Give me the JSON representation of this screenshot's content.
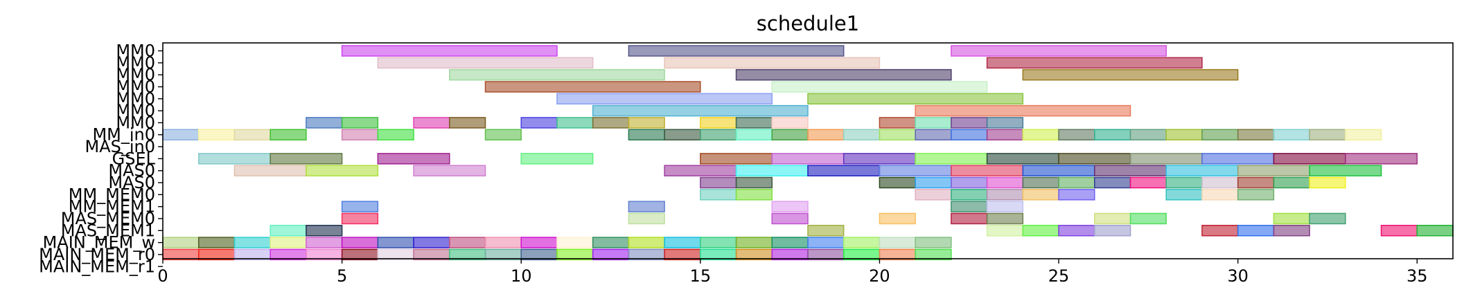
{
  "chart_data": {
    "type": "gantt",
    "title": "schedule1",
    "xlabel": "",
    "ylabel": "",
    "xlim": [
      0,
      36
    ],
    "xticks": [
      0,
      5,
      10,
      15,
      20,
      25,
      30,
      35
    ],
    "grid": false,
    "legend": "none",
    "rows": [
      "MM0",
      "MM0",
      "MM0",
      "MM0",
      "MM0",
      "MM0",
      "MM0",
      "MM_in0",
      "MAS_in0",
      "GSEL",
      "MAS0",
      "MAS0",
      "MM_MEM0",
      "MM_MEM1",
      "MAS_MEM0",
      "MAS_MEM1",
      "MAIN_MEM_w",
      "MAIN_MEM_r0",
      "MAIN_MEM_r1"
    ],
    "tasks": [
      {
        "row": 0,
        "start": 5,
        "end": 11,
        "color": "#cc44ee"
      },
      {
        "row": 0,
        "start": 13,
        "end": 19,
        "color": "#55558a"
      },
      {
        "row": 0,
        "start": 22,
        "end": 28,
        "color": "#d655e0"
      },
      {
        "row": 1,
        "start": 6,
        "end": 12,
        "color": "#e0bcc8"
      },
      {
        "row": 1,
        "start": 14,
        "end": 20,
        "color": "#e8c4b8"
      },
      {
        "row": 1,
        "start": 23,
        "end": 29,
        "color": "#b02a48"
      },
      {
        "row": 2,
        "start": 8,
        "end": 14,
        "color": "#a0d8a0"
      },
      {
        "row": 2,
        "start": 16,
        "end": 22,
        "color": "#4e3f6a"
      },
      {
        "row": 2,
        "start": 24,
        "end": 30,
        "color": "#9a7a20"
      },
      {
        "row": 3,
        "start": 9,
        "end": 15,
        "color": "#a8502a"
      },
      {
        "row": 3,
        "start": 17,
        "end": 23,
        "color": "#c8f0c8"
      },
      {
        "row": 4,
        "start": 11,
        "end": 17,
        "color": "#8aa0f0"
      },
      {
        "row": 4,
        "start": 18,
        "end": 24,
        "color": "#8ac440"
      },
      {
        "row": 5,
        "start": 12,
        "end": 18,
        "color": "#50b0d0"
      },
      {
        "row": 5,
        "start": 21,
        "end": 27,
        "color": "#e87a5a"
      },
      {
        "row": 6,
        "start": 4,
        "end": 5,
        "color": "#4a7ac0"
      },
      {
        "row": 6,
        "start": 5,
        "end": 6,
        "color": "#40c040"
      },
      {
        "row": 6,
        "start": 7,
        "end": 8,
        "color": "#e040b0"
      },
      {
        "row": 6,
        "start": 8,
        "end": 9,
        "color": "#7a5a20"
      },
      {
        "row": 6,
        "start": 10,
        "end": 11,
        "color": "#4a40e0"
      },
      {
        "row": 6,
        "start": 11,
        "end": 12,
        "color": "#40c090"
      },
      {
        "row": 6,
        "start": 12,
        "end": 13,
        "color": "#7a7030"
      },
      {
        "row": 6,
        "start": 13,
        "end": 14,
        "color": "#c0b030"
      },
      {
        "row": 6,
        "start": 15,
        "end": 16,
        "color": "#f0d020"
      },
      {
        "row": 6,
        "start": 16,
        "end": 17,
        "color": "#3a6a50"
      },
      {
        "row": 6,
        "start": 17,
        "end": 18,
        "color": "#f8c8c0"
      },
      {
        "row": 6,
        "start": 20,
        "end": 21,
        "color": "#b04a30"
      },
      {
        "row": 6,
        "start": 21,
        "end": 22,
        "color": "#70e0b0"
      },
      {
        "row": 6,
        "start": 22,
        "end": 23,
        "color": "#704090"
      },
      {
        "row": 6,
        "start": 23,
        "end": 24,
        "color": "#4a7a9a"
      },
      {
        "row": 7,
        "start": 0,
        "end": 1,
        "color": "#8ab0e0"
      },
      {
        "row": 7,
        "start": 1,
        "end": 2,
        "color": "#f8f0a0"
      },
      {
        "row": 7,
        "start": 2,
        "end": 3,
        "color": "#e0d8a0"
      },
      {
        "row": 7,
        "start": 3,
        "end": 4,
        "color": "#40c030"
      },
      {
        "row": 7,
        "start": 5,
        "end": 6,
        "color": "#d080b0"
      },
      {
        "row": 7,
        "start": 6,
        "end": 7,
        "color": "#40e040"
      },
      {
        "row": 7,
        "start": 9,
        "end": 10,
        "color": "#60c050"
      },
      {
        "row": 7,
        "start": 13,
        "end": 14,
        "color": "#2a7a50"
      },
      {
        "row": 7,
        "start": 14,
        "end": 15,
        "color": "#3a5a40"
      },
      {
        "row": 7,
        "start": 15,
        "end": 16,
        "color": "#40a070"
      },
      {
        "row": 7,
        "start": 16,
        "end": 17,
        "color": "#60f0c0"
      },
      {
        "row": 7,
        "start": 17,
        "end": 18,
        "color": "#40a040"
      },
      {
        "row": 7,
        "start": 18,
        "end": 19,
        "color": "#f09a50"
      },
      {
        "row": 7,
        "start": 19,
        "end": 20,
        "color": "#90d0c0"
      },
      {
        "row": 7,
        "start": 20,
        "end": 21,
        "color": "#a0e060"
      },
      {
        "row": 7,
        "start": 21,
        "end": 22,
        "color": "#606ab0"
      },
      {
        "row": 7,
        "start": 22,
        "end": 23,
        "color": "#4070e0"
      },
      {
        "row": 7,
        "start": 23,
        "end": 24,
        "color": "#a04090"
      },
      {
        "row": 7,
        "start": 24,
        "end": 25,
        "color": "#d0f050"
      },
      {
        "row": 7,
        "start": 25,
        "end": 26,
        "color": "#607a60"
      },
      {
        "row": 7,
        "start": 26,
        "end": 27,
        "color": "#30b090"
      },
      {
        "row": 7,
        "start": 27,
        "end": 28,
        "color": "#60a080"
      },
      {
        "row": 7,
        "start": 28,
        "end": 29,
        "color": "#a0c030"
      },
      {
        "row": 7,
        "start": 29,
        "end": 30,
        "color": "#60a050"
      },
      {
        "row": 7,
        "start": 30,
        "end": 31,
        "color": "#7a7a40"
      },
      {
        "row": 7,
        "start": 31,
        "end": 32,
        "color": "#80d0d0"
      },
      {
        "row": 7,
        "start": 32,
        "end": 33,
        "color": "#a0b080"
      },
      {
        "row": 7,
        "start": 33,
        "end": 34,
        "color": "#f0f0a0"
      },
      {
        "row": 9,
        "start": 1,
        "end": 3,
        "color": "#80c8c8"
      },
      {
        "row": 9,
        "start": 3,
        "end": 5,
        "color": "#607a40"
      },
      {
        "row": 9,
        "start": 6,
        "end": 8,
        "color": "#a02090"
      },
      {
        "row": 9,
        "start": 10,
        "end": 12,
        "color": "#60f080"
      },
      {
        "row": 9,
        "start": 15,
        "end": 17,
        "color": "#a04a20"
      },
      {
        "row": 9,
        "start": 17,
        "end": 19,
        "color": "#c060d0"
      },
      {
        "row": 9,
        "start": 19,
        "end": 21,
        "color": "#6030c0"
      },
      {
        "row": 9,
        "start": 21,
        "end": 23,
        "color": "#80f050"
      },
      {
        "row": 9,
        "start": 23,
        "end": 25,
        "color": "#2a4a3a"
      },
      {
        "row": 9,
        "start": 25,
        "end": 27,
        "color": "#4a4a20"
      },
      {
        "row": 9,
        "start": 27,
        "end": 29,
        "color": "#809070"
      },
      {
        "row": 9,
        "start": 29,
        "end": 31,
        "color": "#5070e0"
      },
      {
        "row": 9,
        "start": 31,
        "end": 33,
        "color": "#800a40"
      },
      {
        "row": 9,
        "start": 33,
        "end": 35,
        "color": "#a03080"
      },
      {
        "row": 10,
        "start": 2,
        "end": 4,
        "color": "#e0c0b0"
      },
      {
        "row": 10,
        "start": 4,
        "end": 6,
        "color": "#b0e040"
      },
      {
        "row": 10,
        "start": 7,
        "end": 9,
        "color": "#d080d0"
      },
      {
        "row": 10,
        "start": 14,
        "end": 16,
        "color": "#a040a0"
      },
      {
        "row": 10,
        "start": 16,
        "end": 18,
        "color": "#40f0f0"
      },
      {
        "row": 10,
        "start": 18,
        "end": 20,
        "color": "#2020c0"
      },
      {
        "row": 10,
        "start": 20,
        "end": 22,
        "color": "#6080e0"
      },
      {
        "row": 10,
        "start": 22,
        "end": 24,
        "color": "#e04060"
      },
      {
        "row": 10,
        "start": 24,
        "end": 26,
        "color": "#2050d0"
      },
      {
        "row": 10,
        "start": 26,
        "end": 28,
        "color": "#603070"
      },
      {
        "row": 10,
        "start": 28,
        "end": 30,
        "color": "#30c0e0"
      },
      {
        "row": 10,
        "start": 30,
        "end": 32,
        "color": "#90a070"
      },
      {
        "row": 10,
        "start": 32,
        "end": 34,
        "color": "#20c040"
      },
      {
        "row": 11,
        "start": 15,
        "end": 16,
        "color": "#804090"
      },
      {
        "row": 11,
        "start": 16,
        "end": 17,
        "color": "#3a5a40"
      },
      {
        "row": 11,
        "start": 20,
        "end": 21,
        "color": "#2a4a20"
      },
      {
        "row": 11,
        "start": 21,
        "end": 22,
        "color": "#30a0f0"
      },
      {
        "row": 11,
        "start": 22,
        "end": 23,
        "color": "#8060e0"
      },
      {
        "row": 11,
        "start": 23,
        "end": 24,
        "color": "#e050d0"
      },
      {
        "row": 11,
        "start": 24,
        "end": 25,
        "color": "#507050"
      },
      {
        "row": 11,
        "start": 25,
        "end": 26,
        "color": "#60b060"
      },
      {
        "row": 11,
        "start": 26,
        "end": 27,
        "color": "#304090"
      },
      {
        "row": 11,
        "start": 27,
        "end": 28,
        "color": "#f01080"
      },
      {
        "row": 11,
        "start": 28,
        "end": 29,
        "color": "#30b080"
      },
      {
        "row": 11,
        "start": 29,
        "end": 30,
        "color": "#d0c0d0"
      },
      {
        "row": 11,
        "start": 30,
        "end": 31,
        "color": "#a04030"
      },
      {
        "row": 11,
        "start": 31,
        "end": 32,
        "color": "#30a050"
      },
      {
        "row": 11,
        "start": 32,
        "end": 33,
        "color": "#f0f020"
      },
      {
        "row": 12,
        "start": 15,
        "end": 16,
        "color": "#70d0c0"
      },
      {
        "row": 12,
        "start": 16,
        "end": 17,
        "color": "#80e040"
      },
      {
        "row": 12,
        "start": 21,
        "end": 22,
        "color": "#e0b0c0"
      },
      {
        "row": 12,
        "start": 22,
        "end": 23,
        "color": "#30b080"
      },
      {
        "row": 12,
        "start": 23,
        "end": 24,
        "color": "#b090b0"
      },
      {
        "row": 12,
        "start": 24,
        "end": 25,
        "color": "#f0c060"
      },
      {
        "row": 12,
        "start": 25,
        "end": 26,
        "color": "#7060f0"
      },
      {
        "row": 12,
        "start": 28,
        "end": 29,
        "color": "#30c0c0"
      },
      {
        "row": 12,
        "start": 29,
        "end": 30,
        "color": "#f8d8b8"
      },
      {
        "row": 12,
        "start": 30,
        "end": 31,
        "color": "#70b070"
      },
      {
        "row": 13,
        "start": 5,
        "end": 6,
        "color": "#5080e0"
      },
      {
        "row": 13,
        "start": 13,
        "end": 14,
        "color": "#6080d0"
      },
      {
        "row": 13,
        "start": 17,
        "end": 18,
        "color": "#e0a0f0"
      },
      {
        "row": 13,
        "start": 22,
        "end": 23,
        "color": "#409070"
      },
      {
        "row": 13,
        "start": 23,
        "end": 24,
        "color": "#c0c0f0"
      },
      {
        "row": 14,
        "start": 5,
        "end": 6,
        "color": "#f03060"
      },
      {
        "row": 14,
        "start": 13,
        "end": 14,
        "color": "#c0e0a0"
      },
      {
        "row": 14,
        "start": 17,
        "end": 18,
        "color": "#c050d0"
      },
      {
        "row": 14,
        "start": 20,
        "end": 21,
        "color": "#f8c060"
      },
      {
        "row": 14,
        "start": 22,
        "end": 23,
        "color": "#b02040"
      },
      {
        "row": 14,
        "start": 23,
        "end": 24,
        "color": "#708050"
      },
      {
        "row": 14,
        "start": 26,
        "end": 27,
        "color": "#d0e080"
      },
      {
        "row": 14,
        "start": 27,
        "end": 28,
        "color": "#50e060"
      },
      {
        "row": 14,
        "start": 31,
        "end": 32,
        "color": "#a0e040"
      },
      {
        "row": 14,
        "start": 32,
        "end": 33,
        "color": "#40a070"
      },
      {
        "row": 15,
        "start": 3,
        "end": 4,
        "color": "#60f0c0"
      },
      {
        "row": 15,
        "start": 4,
        "end": 5,
        "color": "#203050"
      },
      {
        "row": 15,
        "start": 18,
        "end": 19,
        "color": "#a0b040"
      },
      {
        "row": 15,
        "start": 23,
        "end": 24,
        "color": "#d0f0a0"
      },
      {
        "row": 15,
        "start": 24,
        "end": 25,
        "color": "#60f040"
      },
      {
        "row": 15,
        "start": 25,
        "end": 26,
        "color": "#8040e0"
      },
      {
        "row": 15,
        "start": 26,
        "end": 27,
        "color": "#a0a0d0"
      },
      {
        "row": 15,
        "start": 29,
        "end": 30,
        "color": "#c02030"
      },
      {
        "row": 15,
        "start": 30,
        "end": 31,
        "color": "#3070f0"
      },
      {
        "row": 15,
        "start": 31,
        "end": 32,
        "color": "#804080"
      },
      {
        "row": 15,
        "start": 34,
        "end": 35,
        "color": "#f01070"
      },
      {
        "row": 15,
        "start": 35,
        "end": 36,
        "color": "#20b030"
      },
      {
        "row": 16,
        "start": 0,
        "end": 1,
        "color": "#b0d080"
      },
      {
        "row": 16,
        "start": 1,
        "end": 2,
        "color": "#506020"
      },
      {
        "row": 16,
        "start": 2,
        "end": 3,
        "color": "#30d0d0"
      },
      {
        "row": 16,
        "start": 3,
        "end": 4,
        "color": "#e0f080"
      },
      {
        "row": 16,
        "start": 4,
        "end": 5,
        "color": "#d060d0"
      },
      {
        "row": 16,
        "start": 5,
        "end": 6,
        "color": "#c010c0"
      },
      {
        "row": 16,
        "start": 6,
        "end": 7,
        "color": "#3050b0"
      },
      {
        "row": 16,
        "start": 7,
        "end": 8,
        "color": "#3020d0"
      },
      {
        "row": 16,
        "start": 8,
        "end": 9,
        "color": "#c05080"
      },
      {
        "row": 16,
        "start": 9,
        "end": 10,
        "color": "#f090b0"
      },
      {
        "row": 16,
        "start": 10,
        "end": 11,
        "color": "#d010d0"
      },
      {
        "row": 16,
        "start": 11,
        "end": 12,
        "color": "#fff0d0"
      },
      {
        "row": 16,
        "start": 12,
        "end": 13,
        "color": "#309060"
      },
      {
        "row": 16,
        "start": 13,
        "end": 14,
        "color": "#b0e020"
      },
      {
        "row": 16,
        "start": 14,
        "end": 15,
        "color": "#10c0e0"
      },
      {
        "row": 16,
        "start": 15,
        "end": 16,
        "color": "#30d080"
      },
      {
        "row": 16,
        "start": 16,
        "end": 17,
        "color": "#70b020"
      },
      {
        "row": 16,
        "start": 17,
        "end": 18,
        "color": "#109060"
      },
      {
        "row": 16,
        "start": 18,
        "end": 19,
        "color": "#4080f0"
      },
      {
        "row": 16,
        "start": 19,
        "end": 20,
        "color": "#a0f060"
      },
      {
        "row": 16,
        "start": 20,
        "end": 21,
        "color": "#c0e0c0"
      },
      {
        "row": 16,
        "start": 21,
        "end": 22,
        "color": "#80c080"
      },
      {
        "row": 17,
        "start": 0,
        "end": 1,
        "color": "#f04040"
      },
      {
        "row": 17,
        "start": 1,
        "end": 2,
        "color": "#f02010"
      },
      {
        "row": 17,
        "start": 2,
        "end": 3,
        "color": "#c0b0f0"
      },
      {
        "row": 17,
        "start": 3,
        "end": 4,
        "color": "#d030e0"
      },
      {
        "row": 17,
        "start": 4,
        "end": 5,
        "color": "#f080d0"
      },
      {
        "row": 17,
        "start": 5,
        "end": 6,
        "color": "#901020"
      },
      {
        "row": 17,
        "start": 6,
        "end": 7,
        "color": "#e0d0e0"
      },
      {
        "row": 17,
        "start": 7,
        "end": 8,
        "color": "#c07090"
      },
      {
        "row": 17,
        "start": 8,
        "end": 9,
        "color": "#40c080"
      },
      {
        "row": 17,
        "start": 9,
        "end": 10,
        "color": "#70b0a0"
      },
      {
        "row": 17,
        "start": 10,
        "end": 11,
        "color": "#406090"
      },
      {
        "row": 17,
        "start": 11,
        "end": 12,
        "color": "#80f020"
      },
      {
        "row": 17,
        "start": 12,
        "end": 13,
        "color": "#a020f0"
      },
      {
        "row": 17,
        "start": 13,
        "end": 14,
        "color": "#8090c0"
      },
      {
        "row": 17,
        "start": 14,
        "end": 15,
        "color": "#d02020"
      },
      {
        "row": 17,
        "start": 15,
        "end": 16,
        "color": "#20e090"
      },
      {
        "row": 17,
        "start": 16,
        "end": 17,
        "color": "#d09020"
      },
      {
        "row": 17,
        "start": 17,
        "end": 18,
        "color": "#b020e0"
      },
      {
        "row": 17,
        "start": 18,
        "end": 19,
        "color": "#9050a0"
      },
      {
        "row": 17,
        "start": 19,
        "end": 20,
        "color": "#20f040"
      },
      {
        "row": 17,
        "start": 20,
        "end": 21,
        "color": "#f08050"
      },
      {
        "row": 17,
        "start": 21,
        "end": 22,
        "color": "#50e050"
      }
    ]
  }
}
